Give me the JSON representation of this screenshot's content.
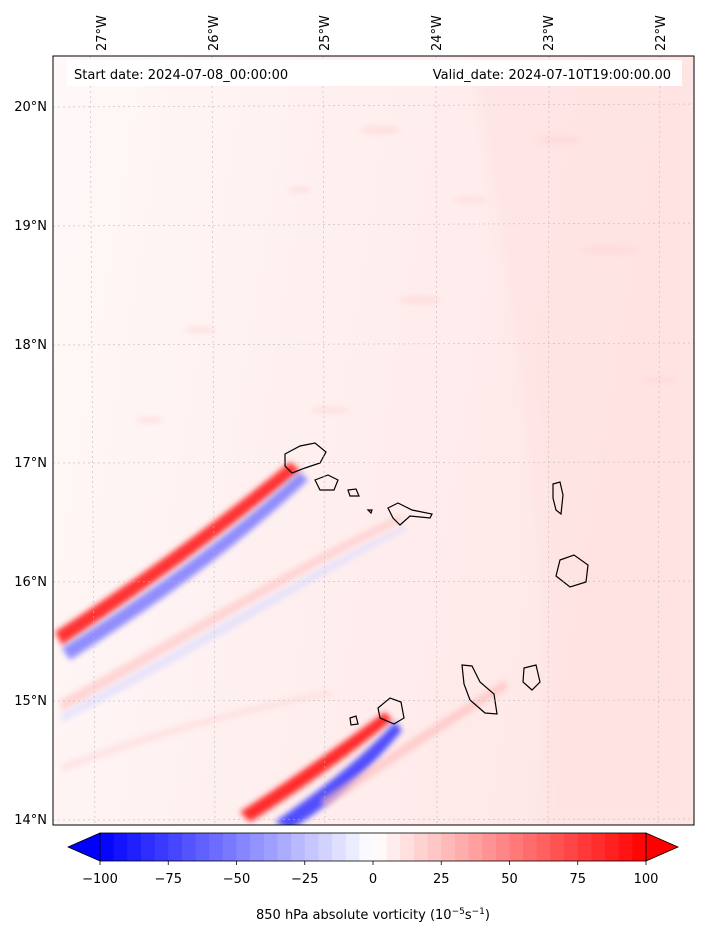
{
  "map": {
    "type": "contour-map",
    "lon_range": [
      -27.1,
      -21.7
    ],
    "lat_range": [
      13.95,
      20.4
    ],
    "top_lon_labels": [
      "27°W",
      "26°W",
      "25°W",
      "24°W",
      "23°W",
      "22°W"
    ],
    "left_lat_labels": [
      "20°N",
      "19°N",
      "18°N",
      "17°N",
      "16°N",
      "15°N",
      "14°N"
    ],
    "gridlines": true
  },
  "header": {
    "start_date": "Start date: 2024-07-08_00:00:00",
    "valid_date": "Valid_date: 2024-07-10T19:00:00.00"
  },
  "colorbar": {
    "ticks": [
      "−100",
      "−75",
      "−50",
      "−25",
      "0",
      "25",
      "50",
      "75",
      "100"
    ],
    "tick_values": [
      -100,
      -75,
      -50,
      -25,
      0,
      25,
      50,
      75,
      100
    ],
    "range": [
      -100,
      100
    ],
    "label": "850 hPa absolute vorticity (10",
    "label_exp1": "−5",
    "label_mid": "s",
    "label_exp2": "−1",
    "label_end": ")",
    "colormap": "bwr",
    "extend": "both",
    "colors": {
      "negative": "#0000ff",
      "zero": "#ffffff",
      "positive": "#ff0000"
    }
  }
}
